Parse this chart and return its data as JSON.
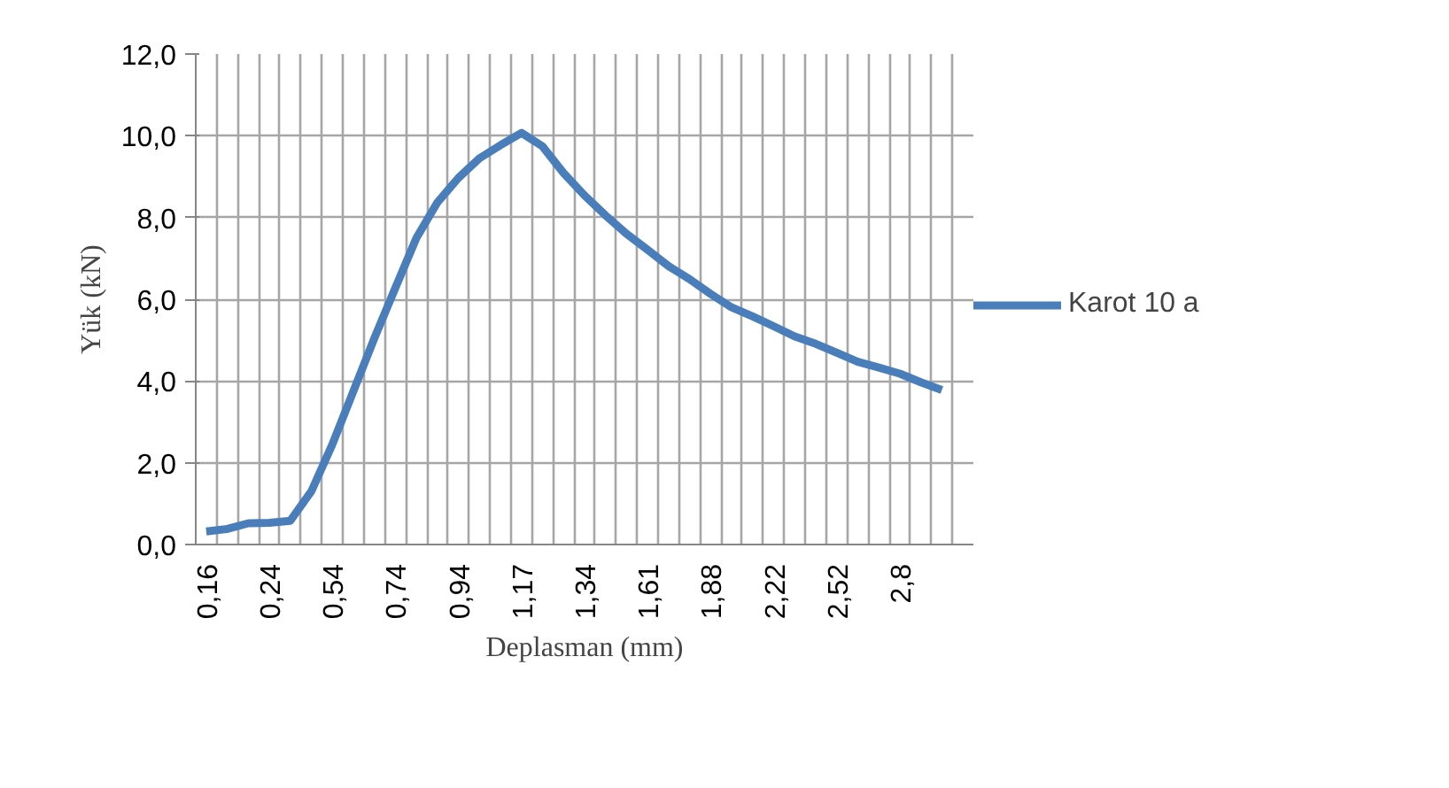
{
  "chart_data": {
    "type": "line",
    "xlabel": "Deplasman (mm)",
    "ylabel": "Yük (kN)",
    "categories": [
      "0,16",
      null,
      null,
      "0,24",
      null,
      null,
      "0,54",
      null,
      null,
      "0,74",
      null,
      null,
      "0,94",
      null,
      null,
      "1,17",
      null,
      null,
      "1,34",
      null,
      null,
      "1,61",
      null,
      null,
      "1,88",
      null,
      null,
      "2,22",
      null,
      null,
      "2,52",
      null,
      null,
      "2,8",
      null,
      null,
      null
    ],
    "series": [
      {
        "name": "Karot 10 a",
        "color": "#4a7ebb",
        "values": [
          0.32,
          0.38,
          0.52,
          0.53,
          0.58,
          1.3,
          2.45,
          3.75,
          5.05,
          6.28,
          7.5,
          8.37,
          8.97,
          9.45,
          9.77,
          10.07,
          9.74,
          9.09,
          8.54,
          8.05,
          7.6,
          7.21,
          6.81,
          6.49,
          6.13,
          5.8,
          5.58,
          5.34,
          5.09,
          4.91,
          4.69,
          4.47,
          4.33,
          4.18,
          3.97,
          3.78,
          null
        ]
      }
    ],
    "ylim": [
      0,
      12
    ],
    "yticks": [
      {
        "value": 0,
        "label": "0,0"
      },
      {
        "value": 2,
        "label": "2,0"
      },
      {
        "value": 4,
        "label": "4,0"
      },
      {
        "value": 6,
        "label": "6,0"
      },
      {
        "value": 8,
        "label": "8,0"
      },
      {
        "value": 10,
        "label": "10,0"
      },
      {
        "value": 12,
        "label": "12,0"
      }
    ],
    "grid": true,
    "legend": "right",
    "marker": "none",
    "line_style": "solid"
  }
}
